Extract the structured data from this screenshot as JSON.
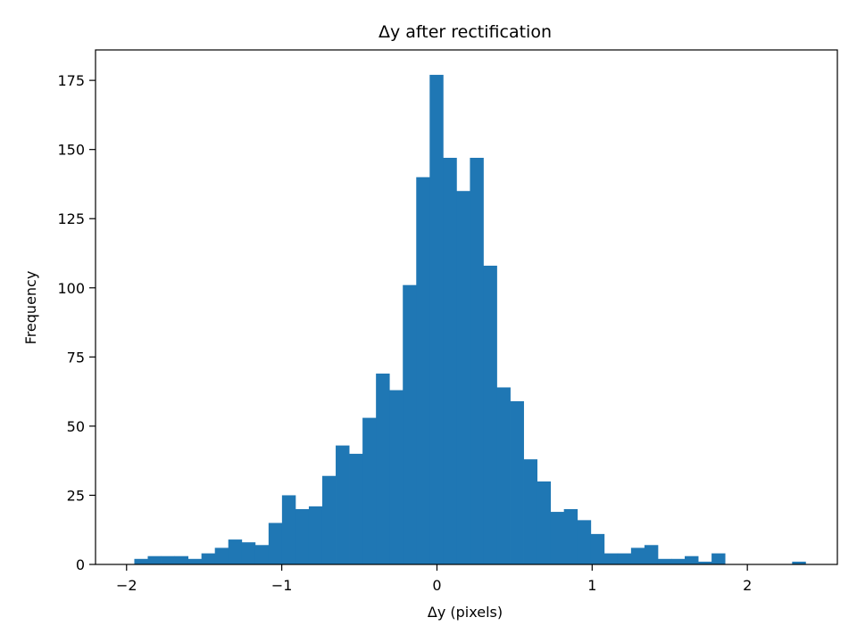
{
  "chart_data": {
    "type": "bar",
    "title": "Δy after rectification",
    "xlabel": "Δy (pixels)",
    "ylabel": "Frequency",
    "xlim": [
      -2.2,
      2.58
    ],
    "ylim": [
      0,
      186
    ],
    "xticks": [
      -2,
      -1,
      0,
      1,
      2
    ],
    "xtick_labels": [
      "−2",
      "−1",
      "0",
      "1",
      "2"
    ],
    "yticks": [
      0,
      25,
      50,
      75,
      100,
      125,
      150,
      175
    ],
    "ytick_labels": [
      "0",
      "25",
      "50",
      "75",
      "100",
      "125",
      "150",
      "175"
    ],
    "grid": false,
    "bar_color": "#1f77b4",
    "bin_start": -1.95,
    "bin_width": 0.0865,
    "values": [
      2,
      3,
      3,
      3,
      2,
      4,
      6,
      9,
      8,
      7,
      15,
      25,
      20,
      21,
      32,
      43,
      40,
      53,
      69,
      63,
      101,
      140,
      177,
      147,
      135,
      147,
      108,
      64,
      59,
      38,
      30,
      19,
      20,
      16,
      11,
      4,
      4,
      6,
      7,
      2,
      2,
      3,
      1,
      4,
      0,
      0,
      0,
      0,
      0,
      1
    ]
  }
}
